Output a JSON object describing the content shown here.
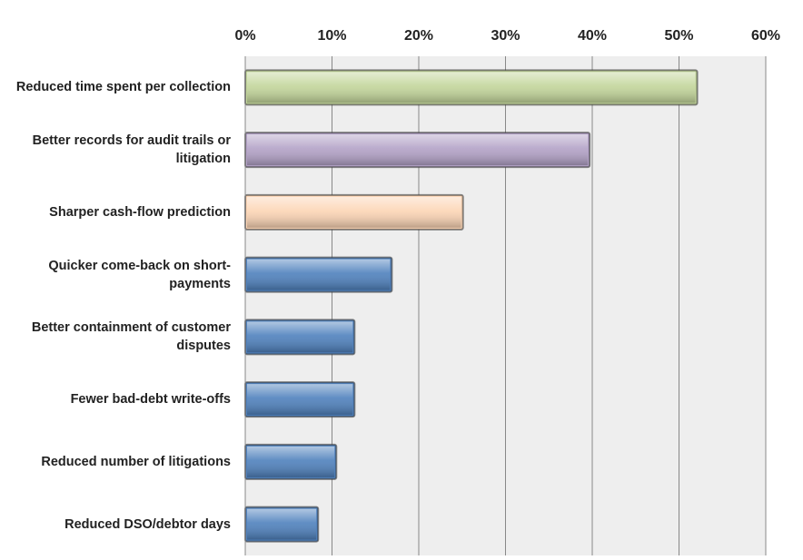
{
  "chart_data": {
    "type": "bar",
    "orientation": "horizontal",
    "categories": [
      "Reduced time spent per collection",
      "Better records for audit trails or litigation",
      "Sharper cash-flow prediction",
      "Quicker come-back on short-payments",
      "Better containment of customer disputes",
      "Fewer bad-debt write-offs",
      "Reduced number of litigations",
      "Reduced DSO/debtor days"
    ],
    "values": [
      52.1,
      39.7,
      25.1,
      16.9,
      12.6,
      12.6,
      10.5,
      8.4
    ],
    "colors": [
      "#c3d69b",
      "#b3a2c7",
      "#fcd5b5",
      "#4f81bd",
      "#4f81bd",
      "#4f81bd",
      "#4f81bd",
      "#4f81bd"
    ],
    "xlim": [
      0,
      60
    ],
    "xticks": [
      {
        "value": 0,
        "label": "0%"
      },
      {
        "value": 10,
        "label": "10%"
      },
      {
        "value": 20,
        "label": "20%"
      },
      {
        "value": 30,
        "label": "30%"
      },
      {
        "value": 40,
        "label": "40%"
      },
      {
        "value": 50,
        "label": "50%"
      },
      {
        "value": 60,
        "label": "60%"
      }
    ],
    "grid": true
  }
}
